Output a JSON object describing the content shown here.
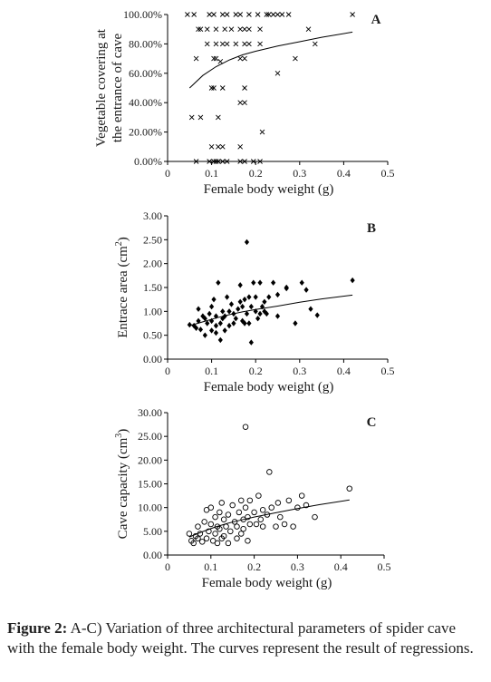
{
  "caption": {
    "label": "Figure 2:",
    "text": " A-C) Variation of three architectural parameters of spider cave with the female body weight. The curves represent the result of regressions."
  },
  "chart_data": [
    {
      "id": "A",
      "type": "scatter",
      "panel_label": "A",
      "xlabel": "Female body weight (g)",
      "ylabel_lines": [
        "Vegetable covering at",
        "the entrance of cave"
      ],
      "xlim": [
        0,
        0.5
      ],
      "ylim": [
        0,
        100
      ],
      "x_ticks": [
        "0",
        "0.1",
        "0.2",
        "0.3",
        "0.4",
        "0.5"
      ],
      "y_ticks": [
        "0.00%",
        "20.00%",
        "40.00%",
        "60.00%",
        "80.00%",
        "100.00%"
      ],
      "marker": "x",
      "fit_curve": {
        "x": [
          0.05,
          0.08,
          0.11,
          0.14,
          0.17,
          0.2,
          0.25,
          0.3,
          0.35,
          0.42
        ],
        "y": [
          50,
          58.5,
          64.5,
          69,
          72.5,
          75,
          78.5,
          81.5,
          84.5,
          88
        ]
      },
      "points": [
        [
          0.045,
          100
        ],
        [
          0.06,
          100
        ],
        [
          0.095,
          100
        ],
        [
          0.105,
          100
        ],
        [
          0.125,
          100
        ],
        [
          0.135,
          100
        ],
        [
          0.155,
          100
        ],
        [
          0.165,
          100
        ],
        [
          0.185,
          100
        ],
        [
          0.205,
          100
        ],
        [
          0.225,
          100
        ],
        [
          0.23,
          100
        ],
        [
          0.24,
          100
        ],
        [
          0.25,
          100
        ],
        [
          0.26,
          100
        ],
        [
          0.275,
          100
        ],
        [
          0.42,
          100
        ],
        [
          0.07,
          90
        ],
        [
          0.075,
          90
        ],
        [
          0.09,
          90
        ],
        [
          0.11,
          90
        ],
        [
          0.13,
          90
        ],
        [
          0.145,
          90
        ],
        [
          0.165,
          90
        ],
        [
          0.175,
          90
        ],
        [
          0.185,
          90
        ],
        [
          0.21,
          90
        ],
        [
          0.32,
          90
        ],
        [
          0.09,
          80
        ],
        [
          0.11,
          80
        ],
        [
          0.125,
          80
        ],
        [
          0.135,
          80
        ],
        [
          0.155,
          80
        ],
        [
          0.175,
          80
        ],
        [
          0.185,
          80
        ],
        [
          0.21,
          80
        ],
        [
          0.335,
          80
        ],
        [
          0.065,
          70
        ],
        [
          0.105,
          70
        ],
        [
          0.11,
          70
        ],
        [
          0.12,
          68
        ],
        [
          0.165,
          70
        ],
        [
          0.175,
          70
        ],
        [
          0.29,
          70
        ],
        [
          0.25,
          60
        ],
        [
          0.1,
          50
        ],
        [
          0.105,
          50
        ],
        [
          0.125,
          50
        ],
        [
          0.175,
          50
        ],
        [
          0.165,
          40
        ],
        [
          0.175,
          40
        ],
        [
          0.055,
          30
        ],
        [
          0.075,
          30
        ],
        [
          0.115,
          30
        ],
        [
          0.215,
          20
        ],
        [
          0.1,
          10
        ],
        [
          0.115,
          10
        ],
        [
          0.125,
          10
        ],
        [
          0.165,
          10
        ],
        [
          0.065,
          0
        ],
        [
          0.095,
          0
        ],
        [
          0.105,
          0
        ],
        [
          0.11,
          0
        ],
        [
          0.115,
          0
        ],
        [
          0.125,
          0
        ],
        [
          0.135,
          0
        ],
        [
          0.165,
          0
        ],
        [
          0.175,
          0
        ],
        [
          0.195,
          0
        ],
        [
          0.21,
          0
        ]
      ]
    },
    {
      "id": "B",
      "type": "scatter",
      "panel_label": "B",
      "xlabel": "Female body weight (g)",
      "ylabel": "Entrace area (cm",
      "ylabel_sup": "2",
      "ylabel_end": ")",
      "xlim": [
        0,
        0.5
      ],
      "ylim": [
        0,
        3
      ],
      "x_ticks": [
        "0",
        "0.1",
        "0.2",
        "0.3",
        "0.4",
        "0.5"
      ],
      "y_ticks": [
        "0.00",
        "0.50",
        "1.00",
        "1.50",
        "2.00",
        "2.50",
        "3.00"
      ],
      "marker": "diamond",
      "fit_curve": {
        "x": [
          0.05,
          0.08,
          0.11,
          0.14,
          0.17,
          0.2,
          0.25,
          0.3,
          0.35,
          0.42
        ],
        "y": [
          0.7,
          0.78,
          0.86,
          0.93,
          0.99,
          1.04,
          1.11,
          1.19,
          1.26,
          1.34
        ]
      },
      "points": [
        [
          0.05,
          0.72
        ],
        [
          0.06,
          0.7
        ],
        [
          0.065,
          0.65
        ],
        [
          0.07,
          0.8
        ],
        [
          0.07,
          1.05
        ],
        [
          0.075,
          0.62
        ],
        [
          0.08,
          0.9
        ],
        [
          0.085,
          0.5
        ],
        [
          0.085,
          0.85
        ],
        [
          0.09,
          0.75
        ],
        [
          0.095,
          0.95
        ],
        [
          0.1,
          0.6
        ],
        [
          0.1,
          0.8
        ],
        [
          0.1,
          1.1
        ],
        [
          0.105,
          1.25
        ],
        [
          0.11,
          0.55
        ],
        [
          0.11,
          0.7
        ],
        [
          0.11,
          0.9
        ],
        [
          0.115,
          1.6
        ],
        [
          0.12,
          0.4
        ],
        [
          0.12,
          0.75
        ],
        [
          0.125,
          0.85
        ],
        [
          0.125,
          1.0
        ],
        [
          0.13,
          0.6
        ],
        [
          0.13,
          0.9
        ],
        [
          0.135,
          1.3
        ],
        [
          0.14,
          0.7
        ],
        [
          0.14,
          1.0
        ],
        [
          0.145,
          1.15
        ],
        [
          0.15,
          0.75
        ],
        [
          0.15,
          0.95
        ],
        [
          0.155,
          0.85
        ],
        [
          0.16,
          1.05
        ],
        [
          0.165,
          1.2
        ],
        [
          0.165,
          1.55
        ],
        [
          0.17,
          0.8
        ],
        [
          0.17,
          1.1
        ],
        [
          0.175,
          0.75
        ],
        [
          0.175,
          1.25
        ],
        [
          0.18,
          0.95
        ],
        [
          0.18,
          2.45
        ],
        [
          0.185,
          1.3
        ],
        [
          0.185,
          0.75
        ],
        [
          0.19,
          0.35
        ],
        [
          0.19,
          1.1
        ],
        [
          0.195,
          1.6
        ],
        [
          0.2,
          1.0
        ],
        [
          0.2,
          1.3
        ],
        [
          0.205,
          0.85
        ],
        [
          0.21,
          1.6
        ],
        [
          0.21,
          0.95
        ],
        [
          0.215,
          1.1
        ],
        [
          0.22,
          1.2
        ],
        [
          0.22,
          1.0
        ],
        [
          0.225,
          0.95
        ],
        [
          0.23,
          1.3
        ],
        [
          0.24,
          1.6
        ],
        [
          0.25,
          0.9
        ],
        [
          0.25,
          1.35
        ],
        [
          0.27,
          1.5
        ],
        [
          0.27,
          1.48
        ],
        [
          0.29,
          0.75
        ],
        [
          0.305,
          1.6
        ],
        [
          0.315,
          1.45
        ],
        [
          0.325,
          1.05
        ],
        [
          0.34,
          0.92
        ],
        [
          0.42,
          1.65
        ]
      ]
    },
    {
      "id": "C",
      "type": "scatter",
      "panel_label": "C",
      "xlabel": "Female body weight (g)",
      "ylabel": "Cave capacity (cm",
      "ylabel_sup": "3",
      "ylabel_end": ")",
      "xlim": [
        0,
        0.5
      ],
      "ylim": [
        0,
        30
      ],
      "x_ticks": [
        "0",
        "0.1",
        "0.2",
        "0.3",
        "0.4",
        "0.5"
      ],
      "y_ticks": [
        "0.00",
        "5.00",
        "10.00",
        "15.00",
        "20.00",
        "25.00",
        "30.00"
      ],
      "marker": "circle",
      "fit_curve": {
        "x": [
          0.05,
          0.08,
          0.11,
          0.14,
          0.17,
          0.2,
          0.25,
          0.3,
          0.35,
          0.42
        ],
        "y": [
          3.8,
          4.9,
          5.9,
          6.7,
          7.4,
          8.0,
          8.9,
          9.8,
          10.6,
          11.6
        ]
      },
      "points": [
        [
          0.05,
          4.5
        ],
        [
          0.055,
          3.0
        ],
        [
          0.06,
          2.5
        ],
        [
          0.065,
          4.0
        ],
        [
          0.07,
          3.5
        ],
        [
          0.07,
          6.0
        ],
        [
          0.075,
          4.5
        ],
        [
          0.08,
          2.8
        ],
        [
          0.085,
          7.0
        ],
        [
          0.09,
          3.5
        ],
        [
          0.09,
          9.5
        ],
        [
          0.095,
          5.0
        ],
        [
          0.1,
          6.5
        ],
        [
          0.1,
          10.0
        ],
        [
          0.105,
          3.0
        ],
        [
          0.11,
          4.5
        ],
        [
          0.11,
          8.0
        ],
        [
          0.115,
          2.5
        ],
        [
          0.115,
          6.0
        ],
        [
          0.12,
          5.5
        ],
        [
          0.12,
          9.0
        ],
        [
          0.125,
          3.5
        ],
        [
          0.125,
          11.0
        ],
        [
          0.13,
          7.5
        ],
        [
          0.13,
          4.0
        ],
        [
          0.135,
          6.0
        ],
        [
          0.14,
          8.5
        ],
        [
          0.14,
          2.5
        ],
        [
          0.145,
          5.0
        ],
        [
          0.15,
          10.5
        ],
        [
          0.155,
          7.0
        ],
        [
          0.16,
          3.5
        ],
        [
          0.16,
          6.0
        ],
        [
          0.165,
          9.0
        ],
        [
          0.17,
          4.5
        ],
        [
          0.17,
          11.5
        ],
        [
          0.175,
          7.5
        ],
        [
          0.175,
          5.5
        ],
        [
          0.18,
          27.0
        ],
        [
          0.18,
          10.0
        ],
        [
          0.185,
          8.0
        ],
        [
          0.185,
          3.0
        ],
        [
          0.19,
          6.5
        ],
        [
          0.19,
          11.5
        ],
        [
          0.2,
          9.0
        ],
        [
          0.205,
          6.5
        ],
        [
          0.21,
          12.5
        ],
        [
          0.215,
          7.5
        ],
        [
          0.22,
          9.5
        ],
        [
          0.22,
          6.0
        ],
        [
          0.23,
          8.5
        ],
        [
          0.235,
          17.5
        ],
        [
          0.24,
          10.0
        ],
        [
          0.25,
          6.0
        ],
        [
          0.255,
          11.0
        ],
        [
          0.26,
          8.0
        ],
        [
          0.27,
          6.5
        ],
        [
          0.28,
          11.5
        ],
        [
          0.29,
          6.0
        ],
        [
          0.3,
          10.0
        ],
        [
          0.31,
          12.5
        ],
        [
          0.32,
          10.5
        ],
        [
          0.34,
          8.0
        ],
        [
          0.42,
          14.0
        ]
      ]
    }
  ]
}
